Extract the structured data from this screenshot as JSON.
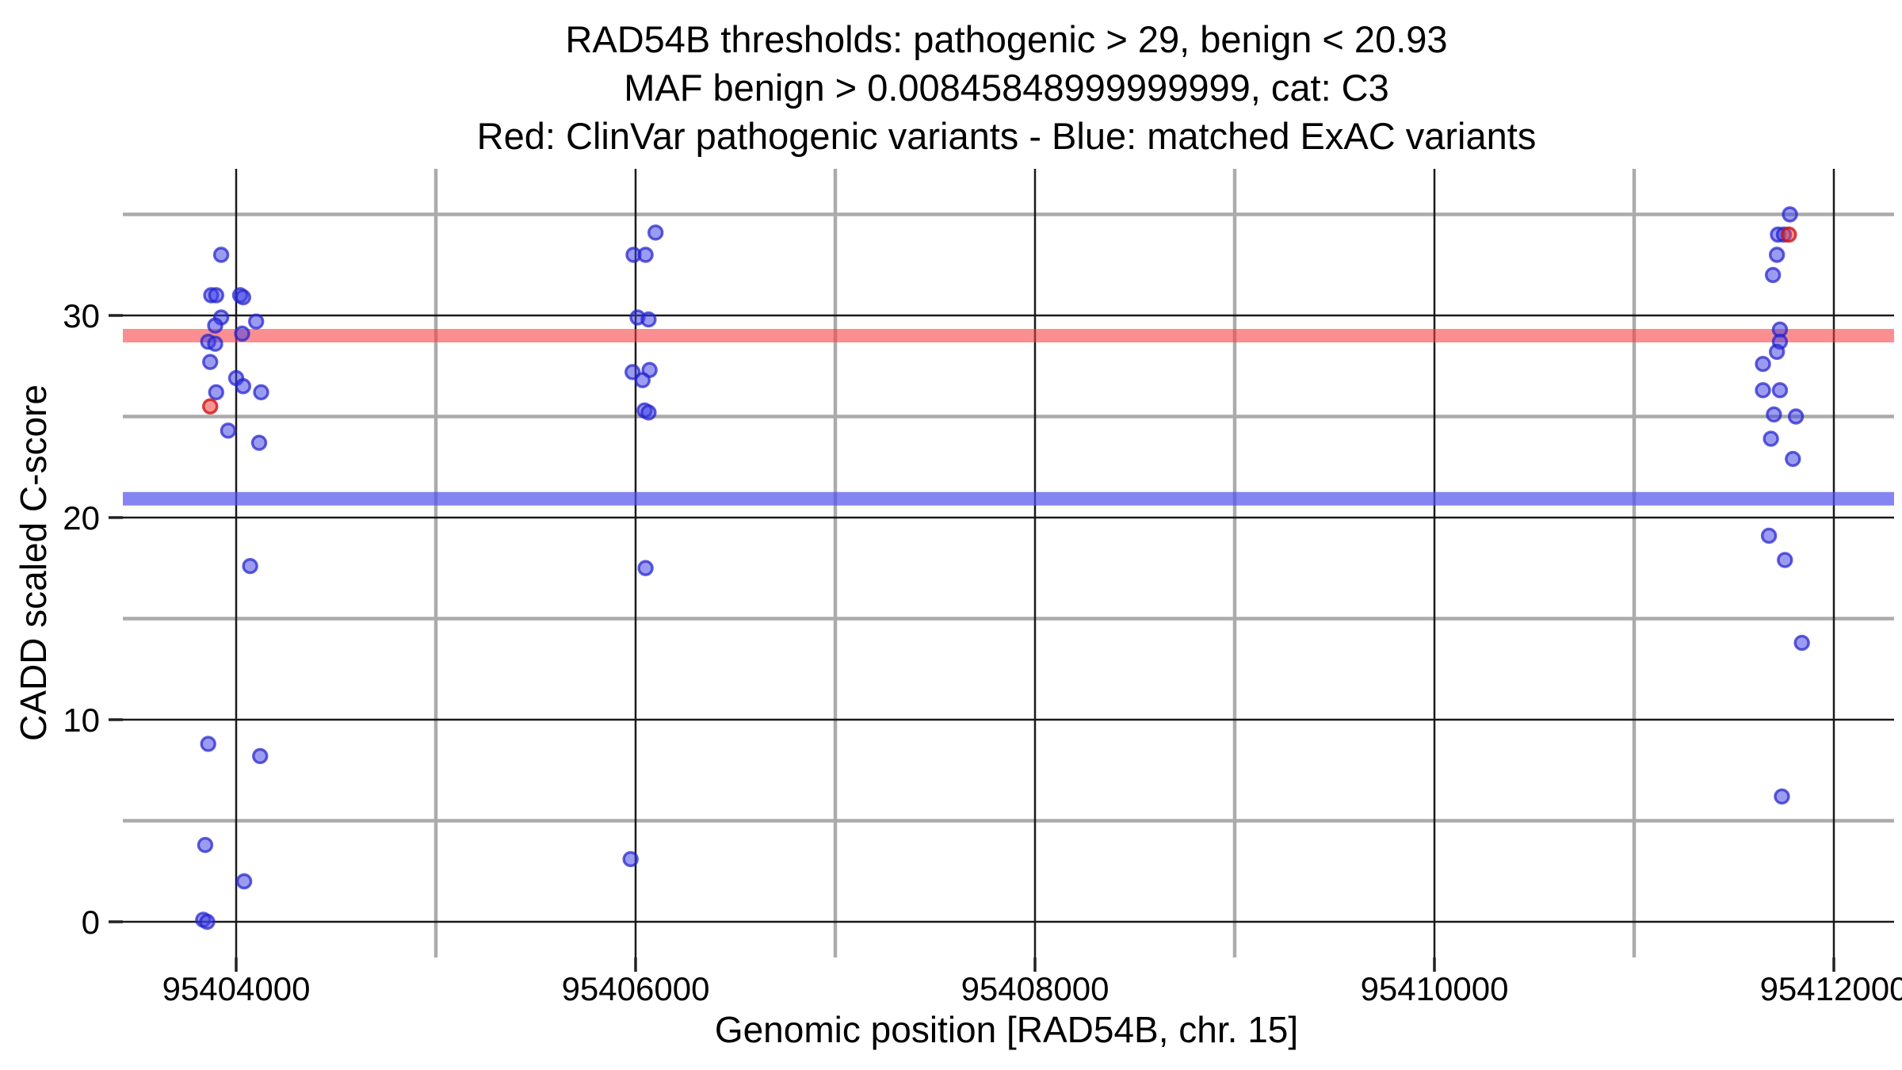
{
  "title": {
    "line1": "RAD54B thresholds: pathogenic > 29, benign < 20.93",
    "line2": "MAF benign > 0.00845848999999999, cat: C3",
    "line3": "Red: ClinVar pathogenic variants - Blue: matched ExAC variants"
  },
  "axes": {
    "x": {
      "label": "Genomic position [RAD54B, chr. 15]",
      "major_ticks": [
        95404000,
        95406000,
        95408000,
        95410000,
        95412000
      ],
      "minor_ticks": [
        95405000,
        95407000,
        95409000,
        95411000
      ],
      "tick_labels": [
        "95404000",
        "95406000",
        "95408000",
        "95410000",
        "95412000"
      ]
    },
    "y": {
      "label": "CADD scaled C-score",
      "major_ticks": [
        0,
        10,
        20,
        30
      ],
      "minor_ticks": [
        5,
        15,
        25,
        35
      ],
      "tick_labels": [
        "0",
        "10",
        "20",
        "30"
      ]
    }
  },
  "chart_data": {
    "type": "scatter",
    "title": "RAD54B thresholds: pathogenic > 29, benign < 20.93 | MAF benign > 0.00845848999999999, cat: C3",
    "xlabel": "Genomic position [RAD54B, chr. 15]",
    "ylabel": "CADD scaled C-score",
    "xlim": [
      95403430,
      95412300
    ],
    "ylim": [
      -1.8,
      37.3
    ],
    "grid": "major-black-minor-gray",
    "thresholds": {
      "pathogenic": {
        "value": 29,
        "color": "rgba(246,60,66,0.58)",
        "meaning": "pathogenic > 29"
      },
      "benign": {
        "value": 20.93,
        "color": "rgba(80,80,238,0.70)",
        "meaning": "benign < 20.93"
      }
    },
    "series": [
      {
        "name": "matched ExAC variants",
        "color_fill": "rgba(64,64,230,0.52)",
        "color_stroke": "rgba(34,34,204,0.72)",
        "points": [
          [
            95403925,
            33.0
          ],
          [
            95403875,
            31.0
          ],
          [
            95403900,
            31.0
          ],
          [
            95404020,
            31.0
          ],
          [
            95404035,
            30.9
          ],
          [
            95403925,
            29.9
          ],
          [
            95404100,
            29.7
          ],
          [
            95403895,
            29.5
          ],
          [
            95404030,
            29.1
          ],
          [
            95403860,
            28.7
          ],
          [
            95403895,
            28.6
          ],
          [
            95403870,
            27.7
          ],
          [
            95404000,
            26.9
          ],
          [
            95404035,
            26.5
          ],
          [
            95403900,
            26.2
          ],
          [
            95404125,
            26.2
          ],
          [
            95403960,
            24.3
          ],
          [
            95404115,
            23.7
          ],
          [
            95404070,
            17.6
          ],
          [
            95403860,
            8.8
          ],
          [
            95404120,
            8.2
          ],
          [
            95403845,
            3.8
          ],
          [
            95404040,
            2.0
          ],
          [
            95403835,
            0.1
          ],
          [
            95403855,
            0.0
          ],
          [
            95406100,
            34.1
          ],
          [
            95405990,
            33.0
          ],
          [
            95406050,
            33.0
          ],
          [
            95406010,
            29.9
          ],
          [
            95406065,
            29.8
          ],
          [
            95406070,
            27.3
          ],
          [
            95405985,
            27.2
          ],
          [
            95406035,
            26.8
          ],
          [
            95406045,
            25.3
          ],
          [
            95406065,
            25.2
          ],
          [
            95406050,
            17.5
          ],
          [
            95405975,
            3.1
          ],
          [
            95411780,
            35.0
          ],
          [
            95411720,
            34.0
          ],
          [
            95411750,
            34.0
          ],
          [
            95411715,
            33.0
          ],
          [
            95411695,
            32.0
          ],
          [
            95411730,
            29.3
          ],
          [
            95411730,
            28.7
          ],
          [
            95411715,
            28.2
          ],
          [
            95411645,
            27.6
          ],
          [
            95411645,
            26.3
          ],
          [
            95411730,
            26.3
          ],
          [
            95411700,
            25.1
          ],
          [
            95411810,
            25.0
          ],
          [
            95411685,
            23.9
          ],
          [
            95411795,
            22.9
          ],
          [
            95411675,
            19.1
          ],
          [
            95411755,
            17.9
          ],
          [
            95411840,
            13.8
          ],
          [
            95411740,
            6.2
          ]
        ]
      },
      {
        "name": "ClinVar pathogenic variants",
        "color_fill": "rgba(238,60,60,0.55)",
        "color_stroke": "rgba(204,17,17,0.78)",
        "points": [
          [
            95403870,
            25.5
          ],
          [
            95411775,
            34.0
          ]
        ]
      }
    ]
  },
  "colors": {
    "background": "#ffffff",
    "major_grid": "#1a1a1a",
    "minor_grid": "#ababab",
    "tick": "#222222",
    "text": "#000000"
  }
}
